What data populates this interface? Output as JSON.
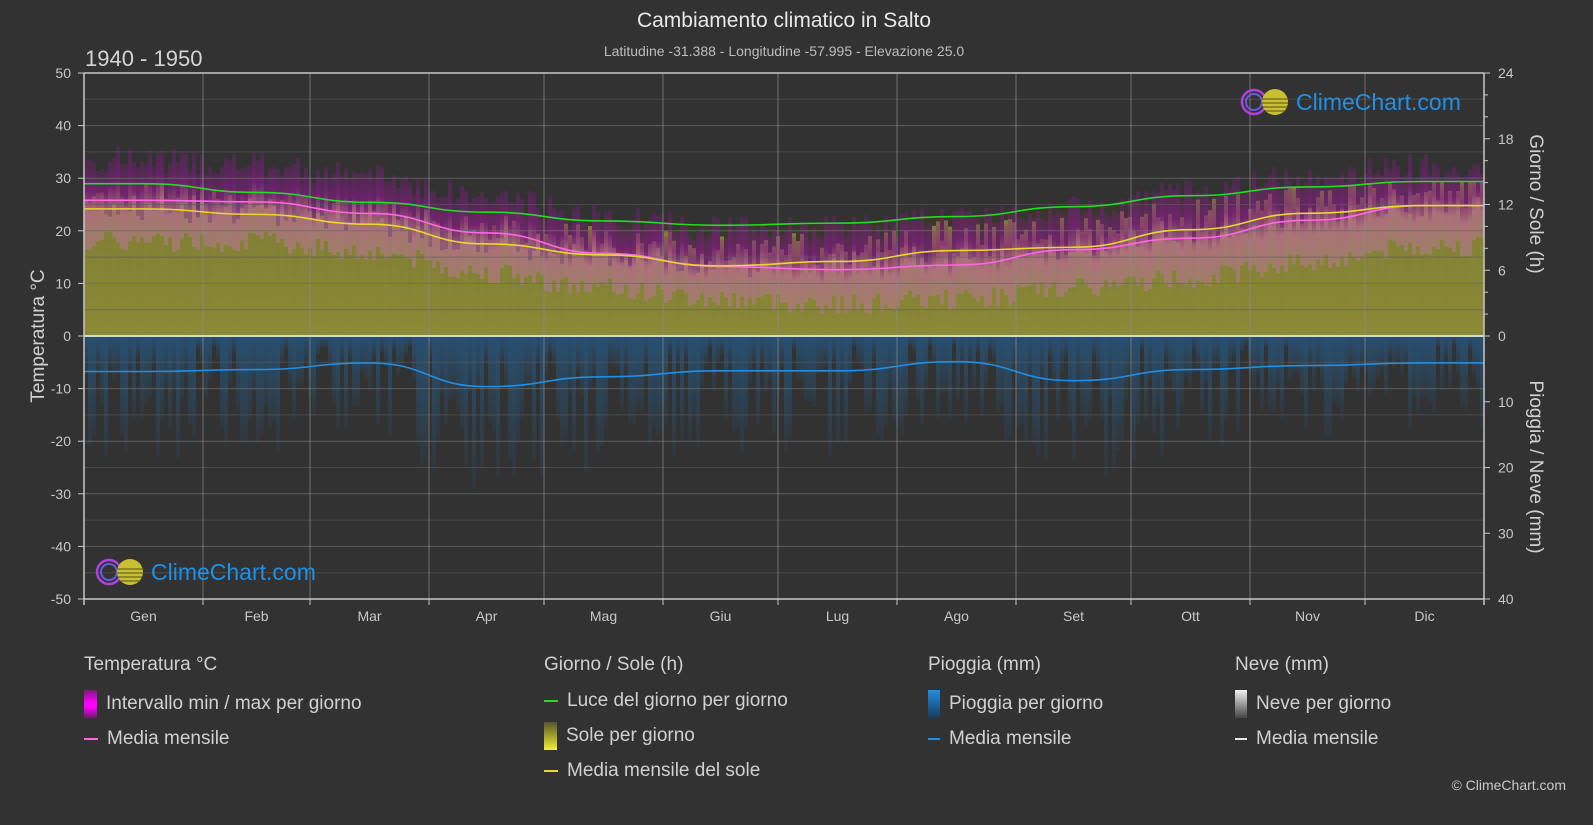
{
  "header": {
    "title": "Cambiamento climatico in Salto",
    "subtitle": "Latitudine -31.388 - Longitudine -57.995 - Elevazione 25.0",
    "period": "1940 - 1950"
  },
  "logo": {
    "text": "ClimeChart.com"
  },
  "copyright": "© ClimeChart.com",
  "colors": {
    "background": "#323232",
    "daylight": "#22dd22",
    "temp_mean": "#ff66e6",
    "sun_mean": "#e6d830",
    "rain_mean": "#1e8fe6",
    "temp_range": "#cc00cc",
    "sun_fill": "#8c8a36",
    "rain_fill": "#1f5a8a"
  },
  "legend": {
    "groups": [
      {
        "title": "Temperatura °C",
        "items": [
          {
            "label": "Intervallo min / max per giorno",
            "icon": "magenta-gradient-box-icon"
          },
          {
            "label": "Media mensile",
            "icon": "pink-line-icon"
          }
        ]
      },
      {
        "title": "Giorno / Sole (h)",
        "items": [
          {
            "label": "Luce del giorno per giorno",
            "icon": "green-line-icon"
          },
          {
            "label": "Sole per giorno",
            "icon": "yellow-gradient-box-icon"
          },
          {
            "label": "Media mensile del sole",
            "icon": "yellow-line-icon"
          }
        ]
      },
      {
        "title": "Pioggia (mm)",
        "items": [
          {
            "label": "Pioggia per giorno",
            "icon": "blue-gradient-box-icon"
          },
          {
            "label": "Media mensile",
            "icon": "blue-line-icon"
          }
        ]
      },
      {
        "title": "Neve (mm)",
        "items": [
          {
            "label": "Neve per giorno",
            "icon": "white-gradient-box-icon"
          },
          {
            "label": "Media mensile",
            "icon": "white-line-icon"
          }
        ]
      }
    ]
  },
  "chart_data": {
    "type": "line",
    "title": "Cambiamento climatico in Salto",
    "categories": [
      "Gen",
      "Feb",
      "Mar",
      "Apr",
      "Mag",
      "Giu",
      "Lug",
      "Ago",
      "Set",
      "Ott",
      "Nov",
      "Dic"
    ],
    "y_left": {
      "label": "Temperatura °C",
      "range": [
        -50,
        50
      ],
      "ticks": [
        50,
        40,
        30,
        20,
        10,
        0,
        -10,
        -20,
        -30,
        -40,
        -50
      ]
    },
    "y_right_top": {
      "label": "Giorno / Sole (h)",
      "range": [
        0,
        24
      ],
      "ticks": [
        24,
        18,
        12,
        6,
        0
      ]
    },
    "y_right_bottom": {
      "label": "Pioggia / Neve (mm)",
      "range": [
        0,
        40
      ],
      "ticks": [
        0,
        10,
        20,
        30,
        40
      ]
    },
    "grid": true,
    "series": [
      {
        "name": "Luce del giorno per giorno",
        "axis": "hours",
        "values": [
          13.9,
          13.1,
          12.2,
          11.3,
          10.5,
          10.1,
          10.3,
          10.9,
          11.8,
          12.8,
          13.6,
          14.1
        ]
      },
      {
        "name": "Media mensile (temperatura)",
        "axis": "temp",
        "values": [
          25.8,
          25.5,
          23.3,
          19.6,
          15.7,
          13.2,
          12.6,
          13.5,
          16.4,
          18.6,
          22.0,
          24.8
        ]
      },
      {
        "name": "Media mensile del sole",
        "axis": "hours",
        "values": [
          11.6,
          11.1,
          10.2,
          8.4,
          7.4,
          6.4,
          6.8,
          7.8,
          8.1,
          9.7,
          11.2,
          11.9
        ]
      },
      {
        "name": "Media mensile (pioggia)",
        "axis": "rain",
        "values": [
          5.4,
          5.1,
          4.1,
          7.7,
          6.2,
          5.3,
          5.3,
          3.9,
          6.8,
          5.1,
          4.5,
          4.1
        ]
      },
      {
        "name": "Intervallo min / max per giorno (max)",
        "axis": "temp",
        "values": [
          33,
          32,
          30,
          26,
          22,
          20,
          20,
          22,
          24,
          27,
          30,
          32
        ]
      },
      {
        "name": "Intervallo min / max per giorno (min)",
        "axis": "temp",
        "values": [
          18,
          18,
          16,
          12,
          9,
          7,
          6,
          7,
          9,
          11,
          14,
          17
        ]
      }
    ]
  }
}
